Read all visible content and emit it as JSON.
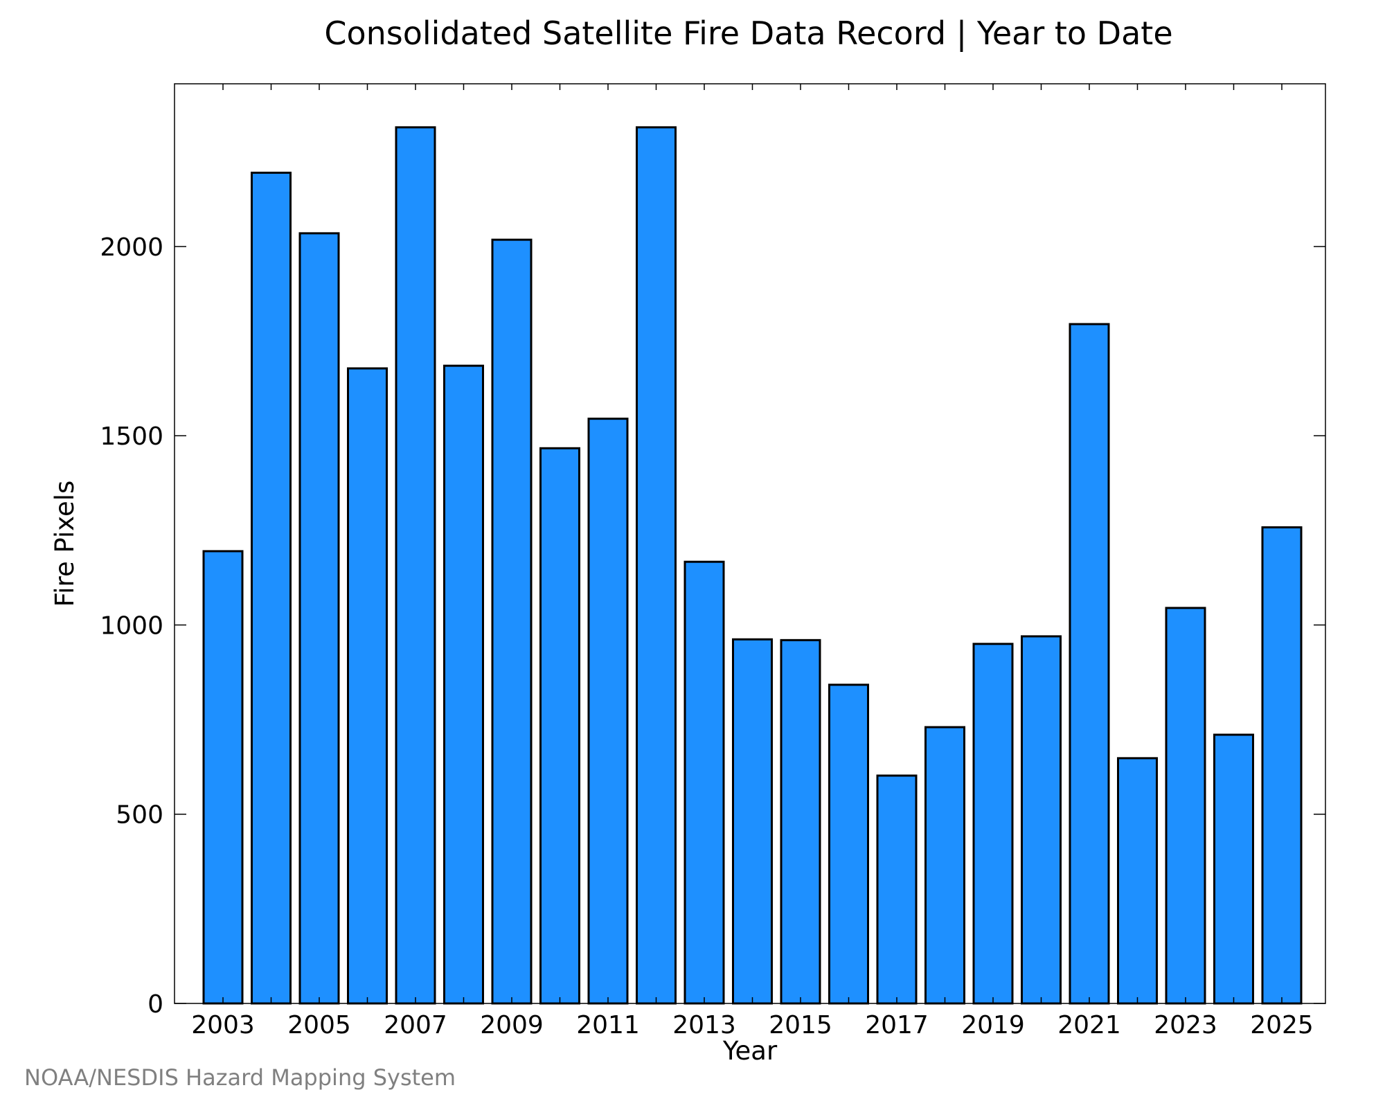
{
  "credit": "NOAA/NESDIS Hazard Mapping System",
  "colors": {
    "bar_fill": "#1E90FF",
    "bar_stroke": "#000000",
    "axis": "#000000"
  },
  "chart_data": {
    "type": "bar",
    "title": "Consolidated Satellite Fire Data Record | Year to Date",
    "xlabel": "Year",
    "ylabel": "Fire Pixels",
    "categories": [
      2003,
      2004,
      2005,
      2006,
      2007,
      2008,
      2009,
      2010,
      2011,
      2012,
      2013,
      2014,
      2015,
      2016,
      2017,
      2018,
      2019,
      2020,
      2021,
      2022,
      2023,
      2024,
      2025
    ],
    "values": [
      1195,
      2195,
      2035,
      1678,
      2315,
      1685,
      2018,
      1467,
      1545,
      2315,
      1167,
      962,
      960,
      842,
      602,
      730,
      950,
      970,
      1795,
      648,
      1045,
      710,
      1258
    ],
    "xticks": [
      "2003",
      "2005",
      "2007",
      "2009",
      "2011",
      "2013",
      "2015",
      "2017",
      "2019",
      "2021",
      "2023",
      "2025"
    ],
    "yticks": [
      "0",
      "500",
      "1000",
      "1500",
      "2000"
    ],
    "ylim": [
      0,
      2430
    ],
    "grid": false
  }
}
